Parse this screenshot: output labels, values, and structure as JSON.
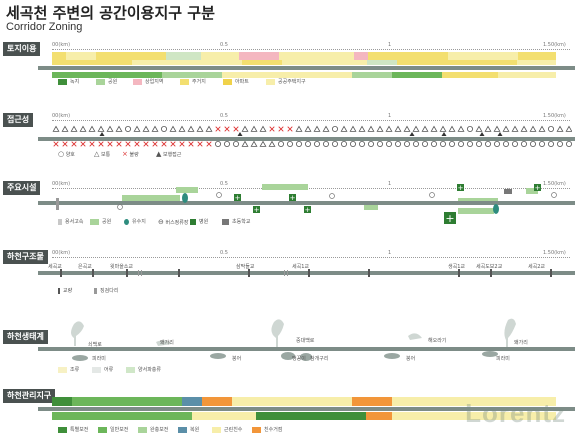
{
  "header": {
    "title": "세곡천 주변의 공간이용지구 구분",
    "subtitle": "Corridor Zoning"
  },
  "axis": {
    "ticks": [
      "00(km)",
      "0.5",
      "1",
      "1.50(km)"
    ]
  },
  "sections": {
    "land_use": {
      "label": "토지이용",
      "legend": [
        "녹지",
        "공원",
        "상업지역",
        "주거지",
        "아파트",
        "공공주택지구"
      ]
    },
    "access": {
      "label": "접근성",
      "legend": [
        "양호",
        "보통",
        "불량",
        "보행접근"
      ]
    },
    "facilities": {
      "label": "주요시설",
      "legend": [
        "용서고속",
        "공원",
        "유수지",
        "버스정류장",
        "병원",
        "초등학교"
      ]
    },
    "structure": {
      "label": "하천구조물",
      "places": [
        "세곡교",
        "은곡교",
        "윗마을소교",
        "삼막들교",
        "세곡1교",
        "생곡1교",
        "세곡도보2교",
        "세곡2교"
      ],
      "legend": [
        "교량",
        "징검다리"
      ]
    },
    "ecology": {
      "label": "하천생태계",
      "birds": [
        "쇠백로",
        "왜가리",
        "중대백로",
        "해오라기",
        "왜가리"
      ],
      "animals": [
        "피라미",
        "붕어",
        "맹꽁이",
        "참개구리",
        "붕어",
        "피라미"
      ],
      "legend": [
        "조류",
        "어류",
        "양서파충류"
      ]
    },
    "management": {
      "label": "하천관리지구",
      "legend": [
        "특별보전",
        "일반보전",
        "완충보전",
        "복원",
        "근린친수",
        "친수거점"
      ]
    }
  },
  "colors": {
    "green_dark": "#3f8f3a",
    "green": "#6cb65a",
    "green_light": "#a9d49a",
    "pink": "#f4b7c0",
    "yellow": "#f3df70",
    "yellow_light": "#f7eeaa",
    "blue": "#5b8fa8",
    "orange": "#f2963a",
    "cream": "#f7f1c4",
    "teal": "#2e8c7e"
  },
  "watermark": "Lorentz"
}
